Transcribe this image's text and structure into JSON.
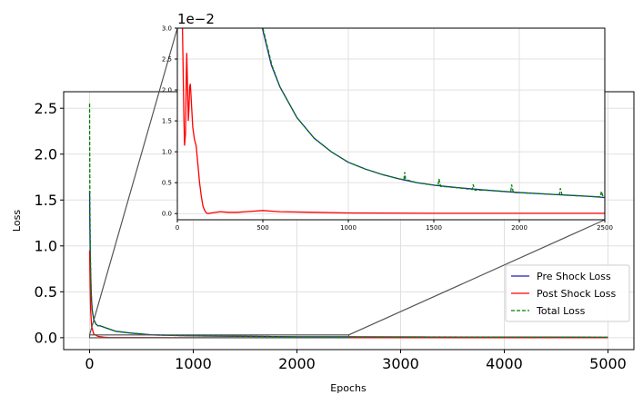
{
  "chart_data": [
    {
      "type": "line",
      "xlabel": "Epochs",
      "ylabel": "Loss",
      "xlim": [
        -250,
        5250
      ],
      "ylim": [
        -0.13,
        2.68
      ],
      "xticks": [
        "0",
        "1000",
        "2000",
        "3000",
        "4000",
        "5000"
      ],
      "yticks": [
        "0.0",
        "0.5",
        "1.0",
        "1.5",
        "2.0",
        "2.5"
      ],
      "grid": true,
      "legend_position": "lower-right",
      "series": [
        {
          "name": "Pre Shock Loss",
          "color": "#1f1fb4",
          "style": "solid",
          "points": [
            [
              0,
              1.6
            ],
            [
              3,
              1.2
            ],
            [
              8,
              0.8
            ],
            [
              15,
              0.5
            ],
            [
              25,
              0.3
            ],
            [
              40,
              0.2
            ],
            [
              60,
              0.15
            ],
            [
              80,
              0.13
            ],
            [
              100,
              0.13
            ],
            [
              150,
              0.11
            ],
            [
              250,
              0.07
            ],
            [
              400,
              0.05
            ],
            [
              600,
              0.03
            ],
            [
              1000,
              0.02
            ],
            [
              2000,
              0.01
            ],
            [
              3000,
              0.008
            ],
            [
              5000,
              0.005
            ]
          ]
        },
        {
          "name": "Post Shock Loss",
          "color": "#ff0000",
          "style": "solid",
          "points": [
            [
              0,
              0.95
            ],
            [
              5,
              0.6
            ],
            [
              10,
              0.3
            ],
            [
              20,
              0.12
            ],
            [
              40,
              0.04
            ],
            [
              80,
              0.015
            ],
            [
              150,
              0.004
            ],
            [
              200,
              0.0003
            ],
            [
              500,
              0.0005
            ],
            [
              1000,
              0.0002
            ],
            [
              5000,
              0.0001
            ]
          ]
        },
        {
          "name": "Total Loss",
          "color": "#008000",
          "style": "dashed",
          "points": [
            [
              0,
              2.55
            ],
            [
              3,
              1.5
            ],
            [
              8,
              0.9
            ],
            [
              15,
              0.5
            ],
            [
              25,
              0.3
            ],
            [
              40,
              0.2
            ],
            [
              60,
              0.15
            ],
            [
              80,
              0.13
            ],
            [
              100,
              0.13
            ],
            [
              150,
              0.11
            ],
            [
              250,
              0.07
            ],
            [
              400,
              0.05
            ],
            [
              600,
              0.03
            ],
            [
              1000,
              0.02
            ],
            [
              2000,
              0.01
            ],
            [
              3000,
              0.008
            ],
            [
              5000,
              0.005
            ]
          ]
        }
      ]
    },
    {
      "type": "line",
      "role": "inset-zoom",
      "scale_label": "1e−2",
      "xlim": [
        0,
        2500
      ],
      "ylim": [
        -0.1,
        3.0
      ],
      "xticks": [
        "0",
        "500",
        "1000",
        "1500",
        "2000",
        "2500"
      ],
      "yticks": [
        "0.0",
        "0.5",
        "1.0",
        "1.5",
        "2.0",
        "2.5",
        "3.0"
      ],
      "grid": true,
      "series": [
        {
          "name": "Pre Shock Loss",
          "color": "#1f1fb4",
          "style": "solid",
          "points": [
            [
              497,
              3.0
            ],
            [
              550,
              2.4
            ],
            [
              600,
              2.05
            ],
            [
              700,
              1.55
            ],
            [
              800,
              1.22
            ],
            [
              900,
              1.0
            ],
            [
              1000,
              0.83
            ],
            [
              1100,
              0.72
            ],
            [
              1200,
              0.63
            ],
            [
              1300,
              0.56
            ],
            [
              1400,
              0.5
            ],
            [
              1500,
              0.46
            ],
            [
              1600,
              0.43
            ],
            [
              1800,
              0.38
            ],
            [
              2000,
              0.34
            ],
            [
              2200,
              0.31
            ],
            [
              2400,
              0.28
            ],
            [
              2500,
              0.26
            ]
          ]
        },
        {
          "name": "Post Shock Loss",
          "color": "#ff0000",
          "style": "solid",
          "points": [
            [
              30,
              3.0
            ],
            [
              38,
              1.6
            ],
            [
              42,
              1.1
            ],
            [
              48,
              1.3
            ],
            [
              52,
              2.2
            ],
            [
              55,
              2.6
            ],
            [
              60,
              2.0
            ],
            [
              64,
              1.5
            ],
            [
              68,
              1.7
            ],
            [
              72,
              2.05
            ],
            [
              76,
              2.1
            ],
            [
              82,
              1.8
            ],
            [
              90,
              1.4
            ],
            [
              100,
              1.2
            ],
            [
              110,
              1.1
            ],
            [
              120,
              0.8
            ],
            [
              130,
              0.5
            ],
            [
              140,
              0.28
            ],
            [
              150,
              0.12
            ],
            [
              160,
              0.05
            ],
            [
              170,
              0.01
            ],
            [
              180,
              0.0
            ],
            [
              200,
              0.01
            ],
            [
              250,
              0.03
            ],
            [
              300,
              0.02
            ],
            [
              350,
              0.02
            ],
            [
              400,
              0.03
            ],
            [
              450,
              0.04
            ],
            [
              500,
              0.05
            ],
            [
              550,
              0.04
            ],
            [
              600,
              0.03
            ],
            [
              800,
              0.02
            ],
            [
              1000,
              0.01
            ],
            [
              1500,
              0.005
            ],
            [
              2000,
              0.005
            ],
            [
              2500,
              0.005
            ]
          ]
        },
        {
          "name": "Total Loss",
          "color": "#008000",
          "style": "dashed",
          "points": [
            [
              500,
              3.0
            ],
            [
              553,
              2.4
            ],
            [
              600,
              2.05
            ],
            [
              700,
              1.55
            ],
            [
              800,
              1.22
            ],
            [
              900,
              1.0
            ],
            [
              1000,
              0.83
            ],
            [
              1100,
              0.72
            ],
            [
              1200,
              0.63
            ],
            [
              1300,
              0.56
            ],
            [
              1325,
              0.55
            ],
            [
              1330,
              0.67
            ],
            [
              1335,
              0.55
            ],
            [
              1400,
              0.5
            ],
            [
              1500,
              0.46
            ],
            [
              1525,
              0.45
            ],
            [
              1530,
              0.56
            ],
            [
              1540,
              0.44
            ],
            [
              1600,
              0.43
            ],
            [
              1725,
              0.39
            ],
            [
              1730,
              0.47
            ],
            [
              1740,
              0.38
            ],
            [
              1800,
              0.38
            ],
            [
              1950,
              0.35
            ],
            [
              1955,
              0.47
            ],
            [
              1965,
              0.34
            ],
            [
              2000,
              0.34
            ],
            [
              2200,
              0.31
            ],
            [
              2235,
              0.31
            ],
            [
              2240,
              0.41
            ],
            [
              2250,
              0.3
            ],
            [
              2400,
              0.28
            ],
            [
              2475,
              0.27
            ],
            [
              2480,
              0.36
            ],
            [
              2490,
              0.27
            ],
            [
              2500,
              0.26
            ]
          ]
        }
      ]
    }
  ]
}
